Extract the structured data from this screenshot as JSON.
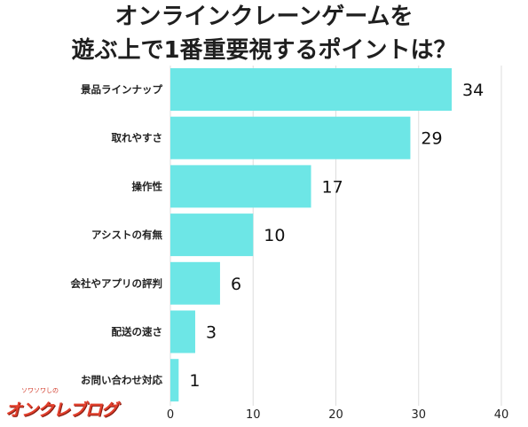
{
  "title": {
    "line1": "オンラインクレーンゲームを",
    "line2": "遊ぶ上で1番重要視するポイントは？"
  },
  "logo": {
    "small_text": "ソワソワしの",
    "main_text": "オンクレブログ"
  },
  "colors": {
    "bar": "#6de6e6",
    "grid": "#dddddd",
    "text": "#222222"
  },
  "chart_data": {
    "type": "bar",
    "orientation": "horizontal",
    "categories": [
      "景品ラインナップ",
      "取れやすさ",
      "操作性",
      "アシストの有無",
      "会社やアプリの評判",
      "配送の速さ",
      "お問い合わせ対応"
    ],
    "values": [
      34,
      29,
      17,
      10,
      6,
      3,
      1
    ],
    "title": "オンラインクレーンゲームを遊ぶ上で1番重要視するポイントは？",
    "xlabel": "",
    "ylabel": "",
    "xlim": [
      0,
      40
    ],
    "xticks": [
      0,
      10,
      20,
      30,
      40
    ],
    "grid": true,
    "legend": "none",
    "data_labels": true
  }
}
